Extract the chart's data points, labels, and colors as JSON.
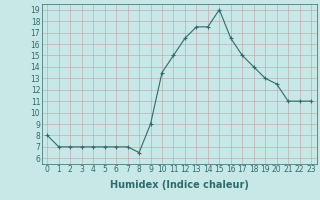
{
  "x": [
    0,
    1,
    2,
    3,
    4,
    5,
    6,
    7,
    8,
    9,
    10,
    11,
    12,
    13,
    14,
    15,
    16,
    17,
    18,
    19,
    20,
    21,
    22,
    23
  ],
  "y": [
    8.0,
    7.0,
    7.0,
    7.0,
    7.0,
    7.0,
    7.0,
    7.0,
    6.5,
    9.0,
    13.5,
    15.0,
    16.5,
    17.5,
    17.5,
    19.0,
    16.5,
    15.0,
    14.0,
    13.0,
    12.5,
    11.0,
    11.0,
    11.0
  ],
  "xlabel": "Humidex (Indice chaleur)",
  "xlim": [
    -0.5,
    23.5
  ],
  "ylim": [
    5.5,
    19.5
  ],
  "yticks": [
    6,
    7,
    8,
    9,
    10,
    11,
    12,
    13,
    14,
    15,
    16,
    17,
    18,
    19
  ],
  "xticks": [
    0,
    1,
    2,
    3,
    4,
    5,
    6,
    7,
    8,
    9,
    10,
    11,
    12,
    13,
    14,
    15,
    16,
    17,
    18,
    19,
    20,
    21,
    22,
    23
  ],
  "line_color": "#2e6b6b",
  "marker": "+",
  "bg_color": "#c8e8e8",
  "grid_color": "#c0a0a0",
  "label_fontsize": 7,
  "tick_fontsize": 5.5
}
